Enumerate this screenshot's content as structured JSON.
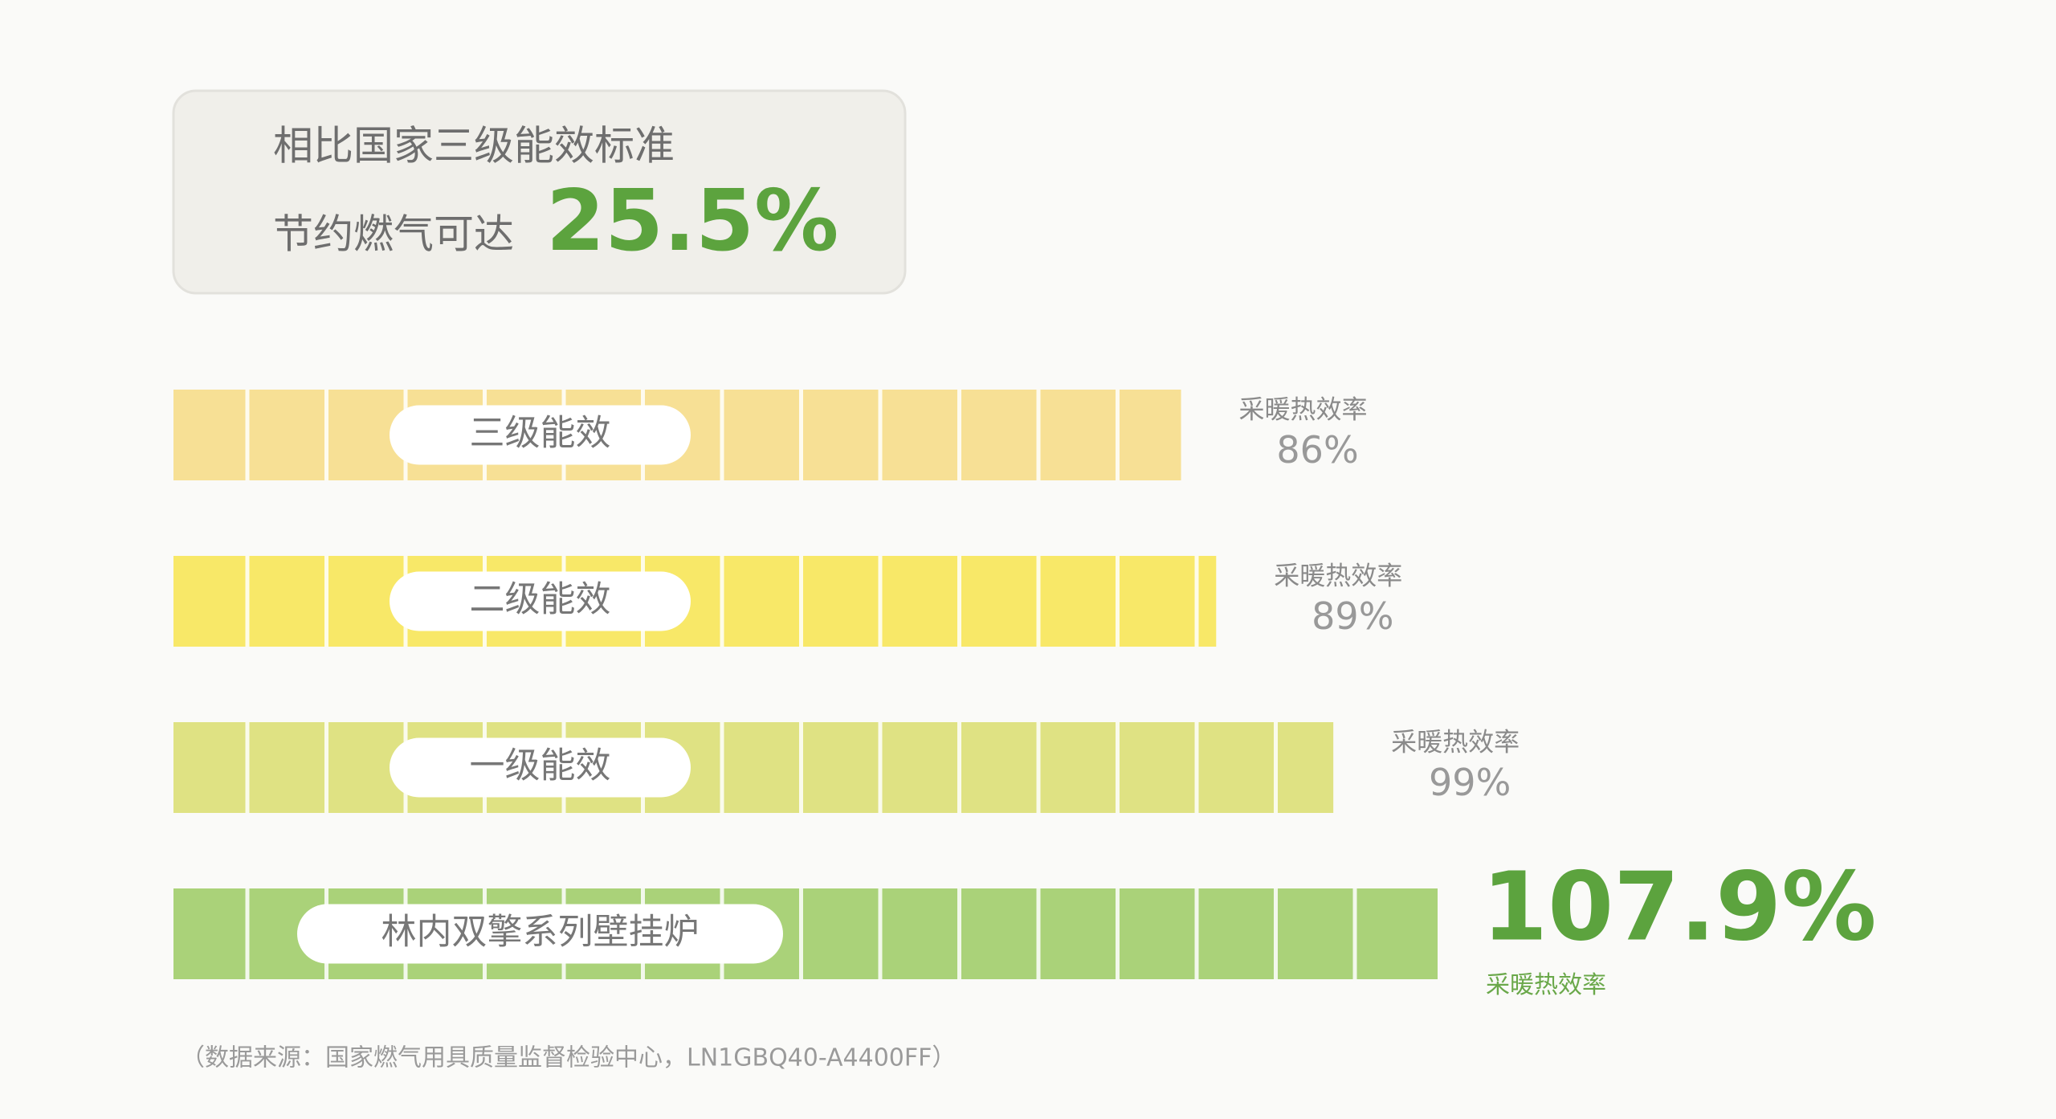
{
  "chart_data": {
    "type": "hbar",
    "title_line1": "相比国家三级能效标准",
    "title_line2": "节约燃气可达",
    "highlight": "25.5%",
    "categories": [
      "三级能效",
      "二级能效",
      "一级能效",
      "林内双擎系列壁挂炉"
    ],
    "values": [
      86,
      89,
      99,
      107.9
    ],
    "value_labels": [
      "86%",
      "89%",
      "99%",
      "107.9%"
    ],
    "value_caption": "采暖热效率",
    "colors": [
      "#f7e095",
      "#f8e868",
      "#dfe283",
      "#aad279"
    ],
    "source": "（数据来源：国家燃气用具质量监督检验中心，LN1GBQ40-A4400FF）"
  }
}
